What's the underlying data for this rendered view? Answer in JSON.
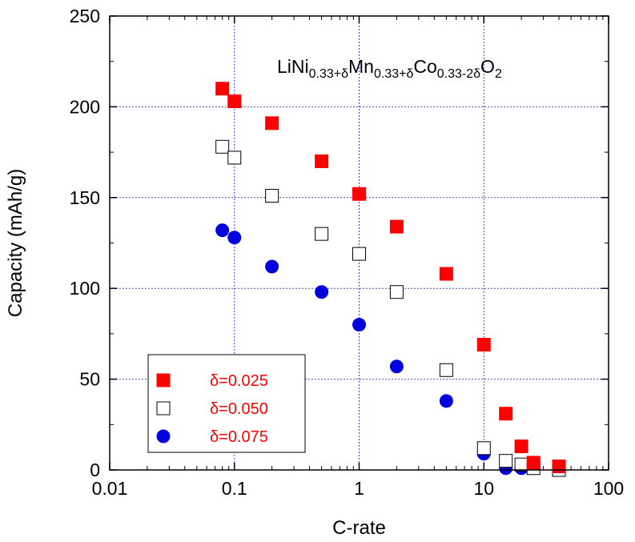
{
  "chart_data": {
    "type": "scatter",
    "xscale": "log",
    "xlim": [
      0.01,
      100
    ],
    "ylim": [
      0,
      250
    ],
    "xlabel": "C-rate",
    "ylabel": "Capacity (mAh/g)",
    "x_ticks": [
      0.01,
      0.1,
      1,
      10,
      100
    ],
    "x_tick_labels": [
      "0.01",
      "0.1",
      "1",
      "10",
      "100"
    ],
    "y_ticks": [
      0,
      50,
      100,
      150,
      200,
      250
    ],
    "y_tick_labels": [
      "0",
      "50",
      "100",
      "150",
      "200",
      "250"
    ],
    "grid": "dotted at major ticks",
    "legend_position": "bottom-left",
    "annotation": {
      "parts": [
        {
          "text": "LiNi",
          "sub": false
        },
        {
          "text": "0.33+δ",
          "sub": true
        },
        {
          "text": "Mn",
          "sub": false
        },
        {
          "text": "0.33+δ",
          "sub": true
        },
        {
          "text": "Co",
          "sub": false
        },
        {
          "text": "0.33-2δ",
          "sub": true
        },
        {
          "text": "O",
          "sub": false
        },
        {
          "text": "2",
          "sub": true
        }
      ]
    },
    "series": [
      {
        "name": "δ=0.025",
        "marker": "filled-square",
        "color": "#ff0000",
        "x": [
          0.08,
          0.1,
          0.2,
          0.5,
          1,
          2,
          5,
          10,
          15,
          20,
          25,
          40
        ],
        "y": [
          210,
          203,
          191,
          170,
          152,
          134,
          108,
          69,
          31,
          13,
          4,
          2
        ]
      },
      {
        "name": "δ=0.050",
        "marker": "open-square",
        "color": "#000000",
        "x": [
          0.08,
          0.1,
          0.2,
          0.5,
          1,
          2,
          5,
          10,
          15,
          20,
          25,
          40
        ],
        "y": [
          178,
          172,
          151,
          130,
          119,
          98,
          55,
          12,
          5,
          3,
          1,
          0
        ]
      },
      {
        "name": "δ=0.075",
        "marker": "filled-circle",
        "color": "#0000dd",
        "x": [
          0.08,
          0.1,
          0.2,
          0.5,
          1,
          2,
          5,
          10,
          15,
          20,
          25
        ],
        "y": [
          132,
          128,
          112,
          98,
          80,
          57,
          38,
          9,
          1,
          1,
          1
        ]
      }
    ],
    "legend_text_color": "#ff0000"
  }
}
